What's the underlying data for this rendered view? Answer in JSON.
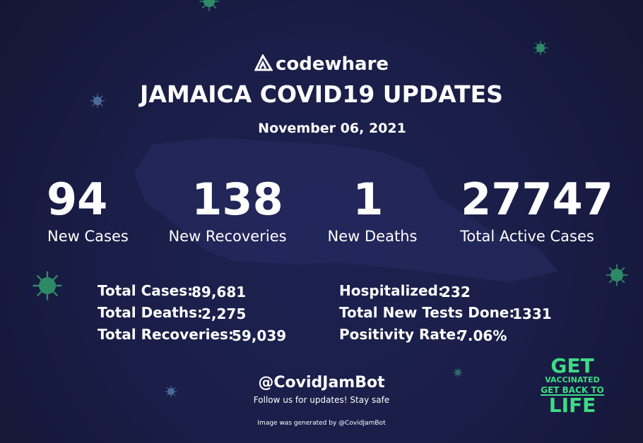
{
  "brand": "codewhare",
  "title": "JAMAICA COVID19 UPDATES",
  "date": "November 06, 2021",
  "headline_stats": [
    {
      "value": 94,
      "label": "New Cases"
    },
    {
      "value": 138,
      "label": "New Recoveries"
    },
    {
      "value": 1,
      "label": "New Deaths"
    },
    {
      "value": 27747,
      "label": "Total Active Cases"
    }
  ],
  "details_left": [
    {
      "label": "Total Cases:",
      "value": "89,681"
    },
    {
      "label": "Total Deaths:",
      "value": "2,275"
    },
    {
      "label": "Total Recoveries:",
      "value": "59,039"
    }
  ],
  "details_right": [
    {
      "label": "Hospitalized:",
      "value": 232
    },
    {
      "label": "Total New Tests Done:",
      "value": 1331
    },
    {
      "label": "Positivity Rate:",
      "value": "7.06%"
    }
  ],
  "badge": {
    "line1": "GET",
    "line2": "VACCINATED",
    "line3": "GET BACK TO",
    "line4": "LIFE"
  },
  "footer": {
    "handle": "@CovidJamBot",
    "tagline": "Follow us for updates! Stay safe",
    "credit": "Image was generated by @CovidJamBot"
  }
}
